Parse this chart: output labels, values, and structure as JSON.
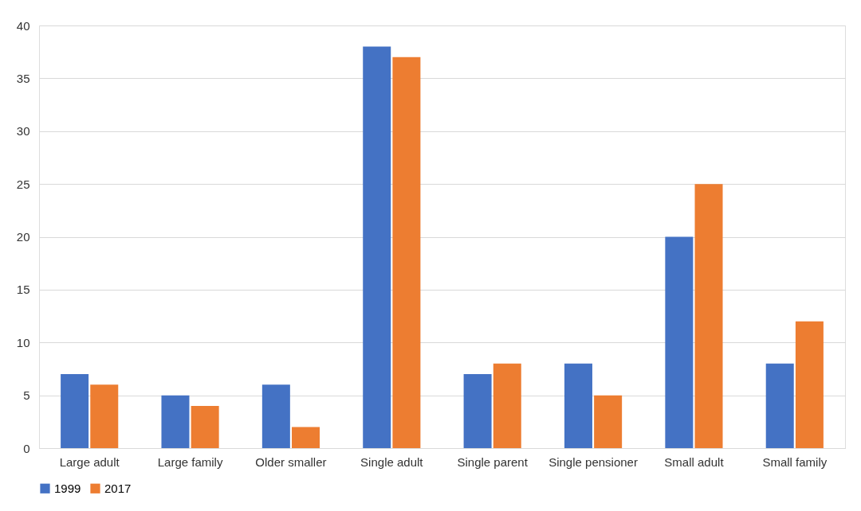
{
  "chart_data": {
    "type": "bar",
    "categories": [
      "Large adult",
      "Large family",
      "Older smaller",
      "Single adult",
      "Single parent",
      "Single pensioner",
      "Small adult",
      "Small family"
    ],
    "series": [
      {
        "name": "1999",
        "color": "#4472c4",
        "values": [
          7,
          5,
          6,
          38,
          7,
          8,
          20,
          8
        ]
      },
      {
        "name": "2017",
        "color": "#ed7d31",
        "values": [
          6,
          4,
          2,
          37,
          8,
          5,
          25,
          12
        ]
      }
    ],
    "ylim": [
      0,
      40
    ],
    "yticks": [
      0,
      5,
      10,
      15,
      20,
      25,
      30,
      35,
      40
    ],
    "grid": "y",
    "legend": "bottom"
  }
}
